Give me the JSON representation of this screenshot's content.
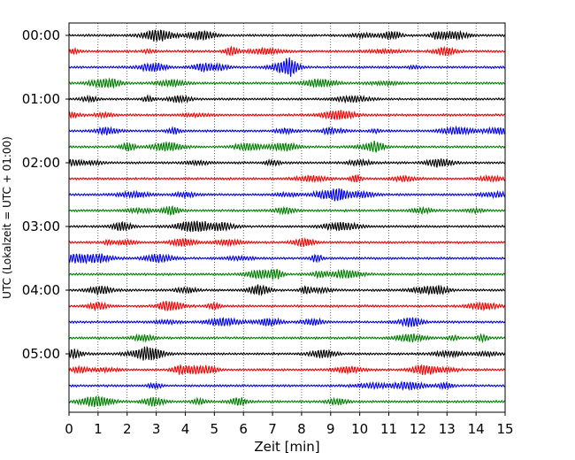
{
  "chart_data": {
    "type": "line",
    "title": "",
    "xlabel": "Zeit  [min]",
    "ylabel": "UTC (Lokalzeit = UTC + 01:00)",
    "xlim": [
      0,
      15
    ],
    "x_ticks": [
      "0",
      "1",
      "2",
      "3",
      "4",
      "5",
      "6",
      "7",
      "8",
      "9",
      "10",
      "11",
      "12",
      "13",
      "14",
      "15"
    ],
    "y_tick_labels": [
      "00:00",
      "01:00",
      "02:00",
      "03:00",
      "04:00",
      "05:00"
    ],
    "trace_interval_min": 15,
    "trace_count": 24,
    "colors_cycle": [
      "#000000",
      "#ff0000",
      "#0000ff",
      "#008000"
    ],
    "vertical_grid": "dotted",
    "legend": "none"
  }
}
